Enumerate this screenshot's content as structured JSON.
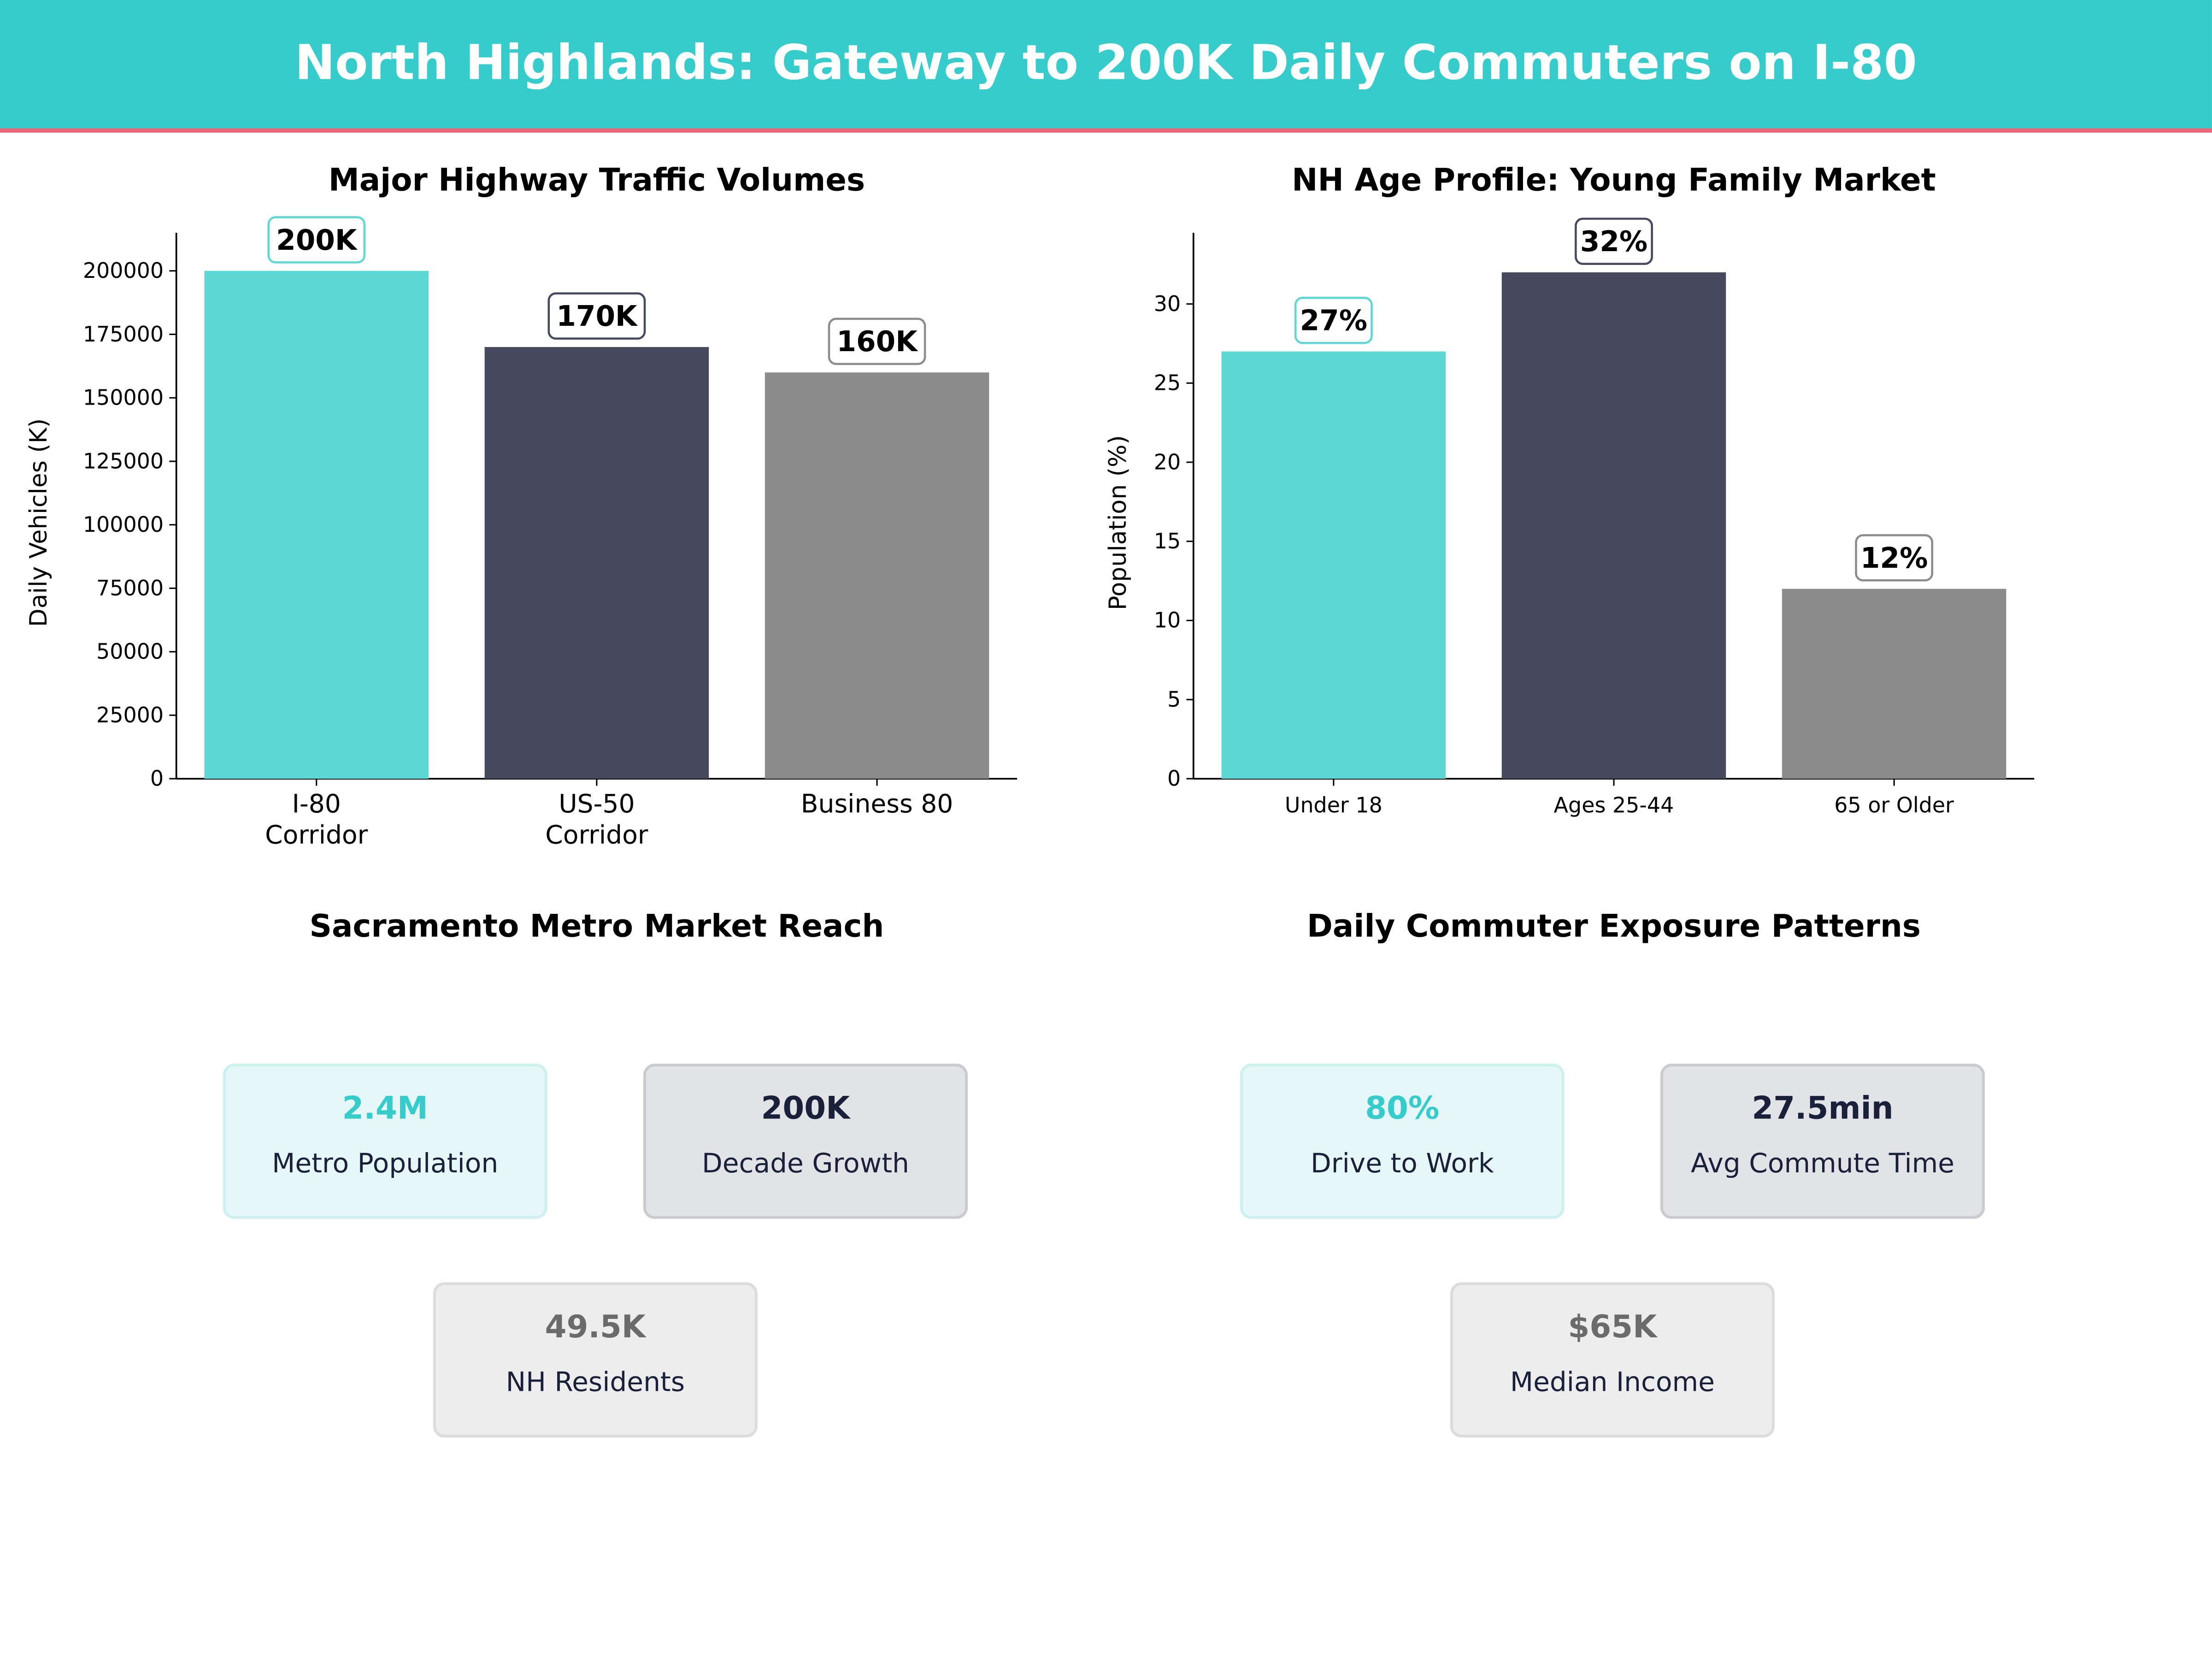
{
  "header": {
    "title": "North Highlands: Gateway to 200K Daily Commuters on I-80"
  },
  "colors": {
    "header_bg": "#36CCCC",
    "header_rule": "#F0647A",
    "teal": "#5DD8D5",
    "navy": "#464A5F",
    "gray": "#8C8C8C"
  },
  "chart_data": [
    {
      "type": "bar",
      "title": "Major Highway Traffic Volumes",
      "ylabel": "Daily Vehicles (K)",
      "xlabel": "",
      "categories": [
        "I-80\nCorridor",
        "US-50\nCorridor",
        "Business 80"
      ],
      "values": [
        200000,
        170000,
        160000
      ],
      "data_labels": [
        "200K",
        "170K",
        "160K"
      ],
      "bar_colors": [
        "#5DD8D5",
        "#464A5F",
        "#8C8C8C"
      ],
      "yticks": [
        0,
        25000,
        50000,
        75000,
        100000,
        125000,
        150000,
        175000,
        200000
      ],
      "ylim": [
        0,
        215000
      ],
      "grid": false
    },
    {
      "type": "bar",
      "title": "NH Age Profile: Young Family Market",
      "ylabel": "Population (%)",
      "xlabel": "",
      "categories": [
        "Under 18",
        "Ages 25-44",
        "65 or Older"
      ],
      "values": [
        27,
        32,
        12
      ],
      "data_labels": [
        "27%",
        "32%",
        "12%"
      ],
      "bar_colors": [
        "#5DD8D5",
        "#464A5F",
        "#8C8C8C"
      ],
      "yticks": [
        0,
        5,
        10,
        15,
        20,
        25,
        30
      ],
      "ylim": [
        0,
        34.5
      ],
      "grid": false
    }
  ],
  "market_reach": {
    "title": "Sacramento Metro Market Reach",
    "cards": [
      {
        "value": "2.4M",
        "label": "Metro Population",
        "style": "teal"
      },
      {
        "value": "200K",
        "label": "Decade Growth",
        "style": "navy"
      },
      {
        "value": "49.5K",
        "label": "NH Residents",
        "style": "gray"
      }
    ]
  },
  "exposure": {
    "title": "Daily Commuter Exposure Patterns",
    "cards": [
      {
        "value": "80%",
        "label": "Drive to Work",
        "style": "teal"
      },
      {
        "value": "27.5min",
        "label": "Avg Commute Time",
        "style": "navy"
      },
      {
        "value": "$65K",
        "label": "Median Income",
        "style": "gray"
      }
    ]
  }
}
